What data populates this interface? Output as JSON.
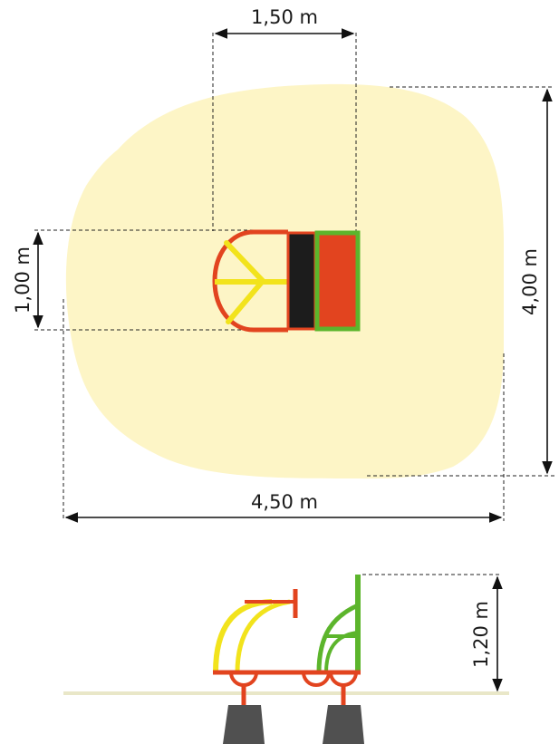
{
  "dimensions": {
    "top_width": "1,50 m",
    "right_height": "4,00 m",
    "left_height": "1,00 m",
    "bottom_width": "4,50 m",
    "side_height": "1,20 m"
  },
  "colors": {
    "safety_zone": "#fdf5c6",
    "red": "#e2441f",
    "yellow": "#f2e31c",
    "green": "#5cb52c",
    "black_seat": "#1c1c1c",
    "red_seat": "#e2441f",
    "foundation": "#505050",
    "ground": "#e9e7c8"
  },
  "icons": {
    "plan_view": "spring-rider-top-view",
    "side_view": "spring-rider-side-view"
  }
}
